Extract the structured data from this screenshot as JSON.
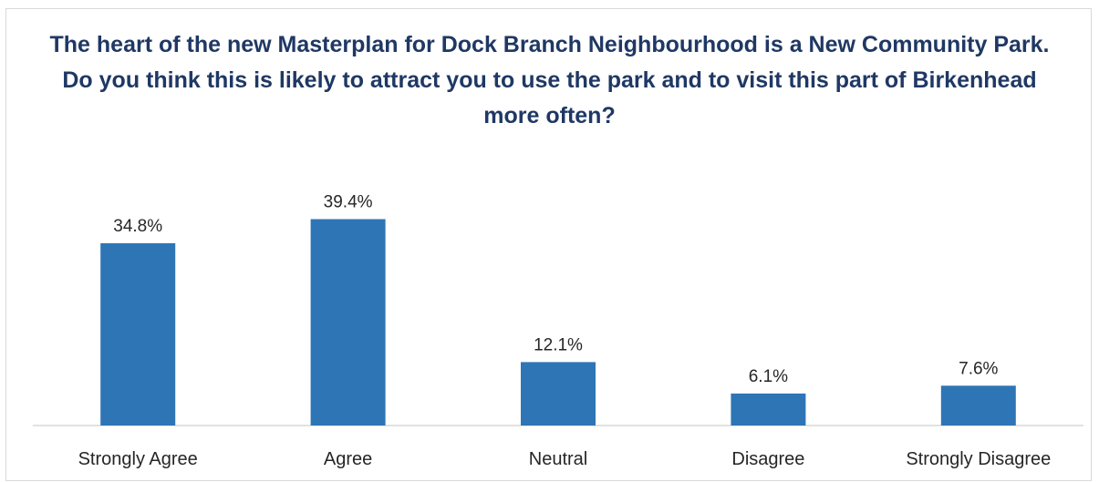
{
  "chart_data": {
    "type": "bar",
    "title": "The heart of the new Masterplan for Dock Branch Neighbourhood is a New Community Park. Do you think this is likely to attract you to use the park and to visit this part of Birkenhead more often?",
    "categories": [
      "Strongly Agree",
      "Agree",
      "Neutral",
      "Disagree",
      "Strongly Disagree"
    ],
    "values": [
      34.8,
      39.4,
      12.1,
      6.1,
      7.6
    ],
    "data_labels": [
      "34.8%",
      "39.4%",
      "12.1%",
      "6.1%",
      "7.6%"
    ],
    "xlabel": "",
    "ylabel": "",
    "ylim": [
      0,
      45
    ],
    "grid": false,
    "legend": "none",
    "bar_color": "#2e75b6",
    "title_color": "#1f3864"
  }
}
